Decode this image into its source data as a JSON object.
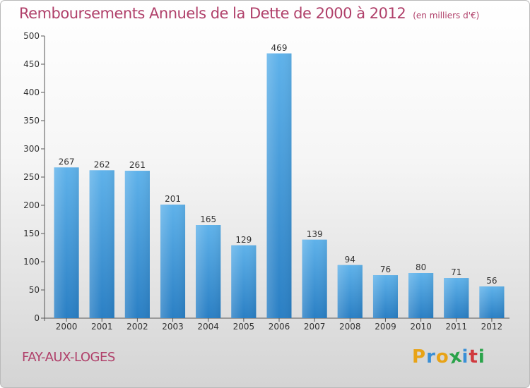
{
  "title": "Remboursements Annuels de la Dette de 2000 à 2012",
  "unit": "(en milliers d'€)",
  "commune": "FAY-AUX-LOGES",
  "logo": {
    "letters": [
      "P",
      "r",
      "o",
      "x",
      "i",
      "t",
      "i"
    ],
    "colors": [
      "#e8a317",
      "#3a8fd6",
      "#e8a317",
      "#2aa34a",
      "#3a8fd6",
      "#d0393e",
      "#2aa34a"
    ]
  },
  "chart_data": {
    "type": "bar",
    "categories": [
      "2000",
      "2001",
      "2002",
      "2003",
      "2004",
      "2005",
      "2006",
      "2007",
      "2008",
      "2009",
      "2010",
      "2011",
      "2012"
    ],
    "values": [
      267,
      262,
      261,
      201,
      165,
      129,
      469,
      139,
      94,
      76,
      80,
      71,
      56
    ],
    "ylim": [
      0,
      500
    ],
    "yticks": [
      0,
      50,
      100,
      150,
      200,
      250,
      300,
      350,
      400,
      450,
      500
    ],
    "grid": false,
    "bar_color": "#3d9be0"
  }
}
